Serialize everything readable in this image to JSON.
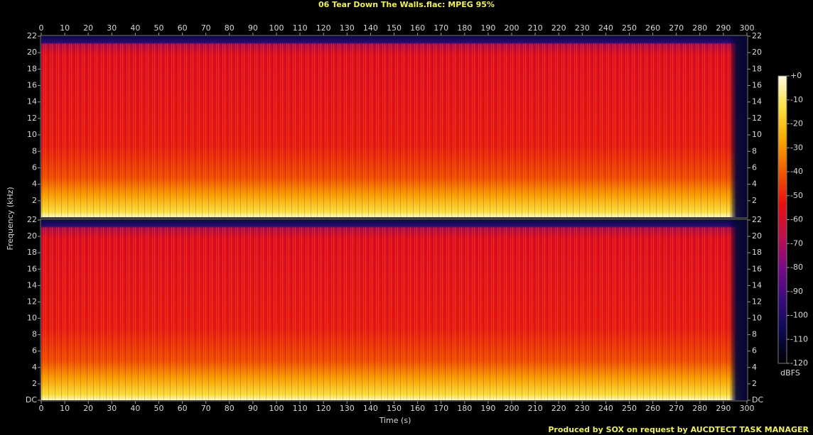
{
  "chart_data": {
    "type": "spectrogram",
    "title": "06 Tear Down The Walls.flac: MPEG 95%",
    "x_label": "Time (s)",
    "y_label": "Frequency (kHz)",
    "xlim": [
      0,
      300
    ],
    "xticks": [
      0,
      10,
      20,
      30,
      40,
      50,
      60,
      70,
      80,
      90,
      100,
      110,
      120,
      130,
      140,
      150,
      160,
      170,
      180,
      190,
      200,
      210,
      220,
      230,
      240,
      250,
      260,
      270,
      280,
      290,
      300
    ],
    "panels": [
      {
        "ylim": [
          0,
          22
        ],
        "yticks": [
          2,
          4,
          6,
          8,
          10,
          12,
          14,
          16,
          18,
          20,
          22
        ]
      },
      {
        "ylim": [
          0,
          22
        ],
        "yticks": [
          {
            "value": 0,
            "label": "DC"
          },
          2,
          4,
          6,
          8,
          10,
          12,
          14,
          16,
          18,
          20,
          22
        ]
      }
    ],
    "colorbar": {
      "label": "dBFS",
      "lim": [
        -120,
        0
      ],
      "ticks": [
        {
          "value": 0,
          "label": "+0"
        },
        -10,
        -20,
        -30,
        -40,
        -50,
        -60,
        -70,
        -80,
        -90,
        -100,
        -110,
        -120
      ],
      "colors": [
        "#000000",
        "#0a0a50",
        "#3a0a80",
        "#7a0a8a",
        "#c0104a",
        "#e81010",
        "#f05a00",
        "#f8a800",
        "#fae040",
        "#fffae0"
      ]
    }
  },
  "footer": "Produced by SOX on request by AUCDTECT TASK MANAGER"
}
